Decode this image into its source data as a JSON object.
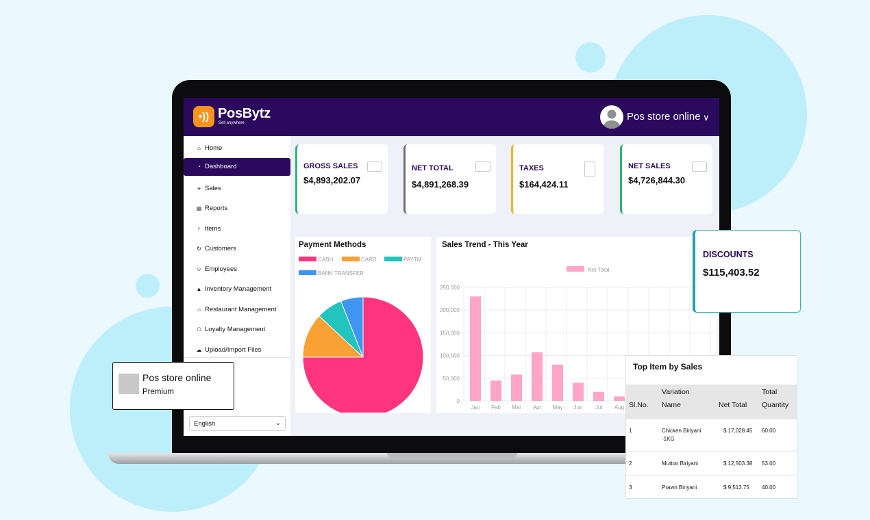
{
  "header": {
    "logo_mark": "•))",
    "brand": "PosBytz",
    "tagline": "Sell anywhere",
    "store_name": "Pos store online",
    "chevron": "∨"
  },
  "sidebar": {
    "items": [
      {
        "label": "Home",
        "icon": "⌂"
      },
      {
        "label": "Dashboard",
        "icon": "◔"
      },
      {
        "label": "Sales",
        "icon": "≡"
      },
      {
        "label": "Reports",
        "icon": "▤"
      },
      {
        "label": "Items",
        "icon": "♇"
      },
      {
        "label": "Customers",
        "icon": "↻"
      },
      {
        "label": "Employees",
        "icon": "☺"
      },
      {
        "label": "Inventory Management",
        "icon": "▲"
      },
      {
        "label": "Restaurant Management",
        "icon": "⌂"
      },
      {
        "label": "Loyalty Management",
        "icon": "☖"
      },
      {
        "label": "Upload/Import Files",
        "icon": "☁"
      }
    ],
    "language": "English",
    "language_arrow": "⌄"
  },
  "stats": [
    {
      "label": "GROSS SALES",
      "value": "$4,893,202.07",
      "color": "#2bb673"
    },
    {
      "label": "NET TOTAL",
      "value": "$4,891,268.39",
      "color": "#6f6f6f"
    },
    {
      "label": "TAXES",
      "value": "$164,424.11",
      "color": "#f0b323"
    },
    {
      "label": "NET SALES",
      "value": "$4,726,844.30",
      "color": "#2bb673"
    }
  ],
  "payment_methods": {
    "title": "Payment Methods"
  },
  "sales_trend": {
    "title": "Sales Trend - This Year"
  },
  "store_popup": {
    "title": "Pos store online",
    "subtitle": "Premium"
  },
  "discounts": {
    "label": "DISCOUNTS",
    "value": "$115,403.52"
  },
  "top_items": {
    "title": "Top Item by Sales",
    "headers": {
      "slno": "Sl.No.",
      "variation_1": "Variation",
      "variation_2": "Name",
      "net_total": "Net Total",
      "qty_1": "Total",
      "qty_2": "Quantity"
    },
    "rows": [
      {
        "slno": "1",
        "name": "Chicken Biriyani",
        "name2": "-1KG",
        "net_total": "$ 17,028.45",
        "qty": "60.00"
      },
      {
        "slno": "2",
        "name": "Mutton Biriyani",
        "name2": "",
        "net_total": "$ 12,503.38",
        "qty": "53.00"
      },
      {
        "slno": "3",
        "name": "Prawn Biriyani",
        "name2": "",
        "net_total": "$ 9,513.75",
        "qty": "40.00"
      }
    ]
  },
  "chart_data": [
    {
      "type": "pie",
      "title": "Payment Methods",
      "categories": [
        "CASH",
        "CARD",
        "PAYTM",
        "BANK TRANSFER"
      ],
      "values": [
        75,
        12,
        7,
        6
      ],
      "colors": [
        "#ff347f",
        "#f9a134",
        "#23c4bd",
        "#3f96f0"
      ],
      "legend": "top-left"
    },
    {
      "type": "bar",
      "title": "Sales Trend - This Year",
      "categories": [
        "Jan",
        "Feb",
        "Mar",
        "Apr",
        "May",
        "Jun",
        "Jul",
        "Aug"
      ],
      "series": [
        {
          "name": "Net Total",
          "values": [
            230000,
            45000,
            58000,
            107000,
            80000,
            40000,
            20000,
            10000
          ]
        }
      ],
      "ylim": [
        0,
        250000
      ],
      "yticks": [
        "0",
        "50,000",
        "100,000",
        "150,000",
        "200,000",
        "250,000"
      ],
      "bar_color": "#ffa5c8",
      "legend": "top-center",
      "grid": true
    }
  ]
}
